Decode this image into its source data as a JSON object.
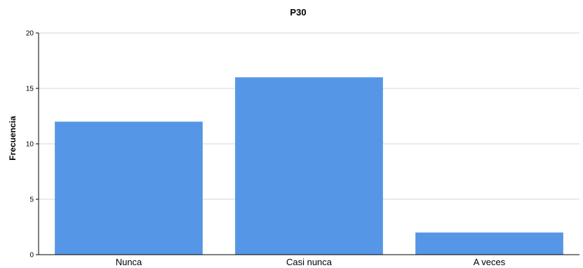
{
  "chart_data": {
    "type": "bar",
    "title": "P30",
    "xlabel": "",
    "ylabel": "Frecuencia",
    "categories": [
      "Nunca",
      "Casi nunca",
      "A veces"
    ],
    "values": [
      12,
      16,
      2
    ],
    "ylim": [
      0,
      20
    ],
    "yticks": [
      0,
      5,
      10,
      15,
      20
    ],
    "grid": true,
    "bar_color": "#5596e6"
  }
}
